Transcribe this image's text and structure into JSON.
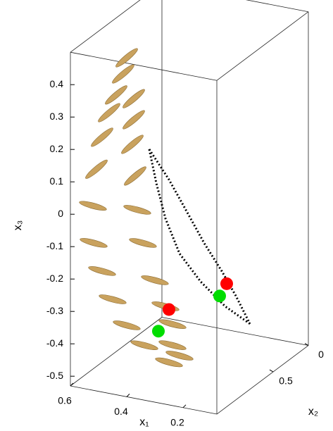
{
  "chart_data": {
    "type": "scatter3d",
    "xlabel": "x₁",
    "ylabel": "x₂",
    "zlabel": "x₃",
    "xlim": [
      0.08,
      0.6
    ],
    "ylim": [
      0,
      1.3
    ],
    "zlim": [
      -0.53,
      0.5
    ],
    "xticks": [
      0.6,
      0.4,
      0.2
    ],
    "yticks": [
      0,
      0.5
    ],
    "zticks": [
      0.4,
      0.3,
      0.2,
      0.1,
      0,
      -0.1,
      -0.2,
      -0.3,
      -0.4,
      -0.5
    ],
    "box": true,
    "series": [
      {
        "color": "#c9a25e",
        "marker": "ellipse",
        "x": [
          0.475,
          0.4875,
          0.5125,
          0.5375,
          0.5625,
          0.5825,
          0.595,
          0.5925,
          0.5625,
          0.525,
          0.475,
          0.4125,
          0.45,
          0.45,
          0.455,
          0.445,
          0.4375,
          0.4175,
          0.375,
          0.3375,
          0.3125,
          0.3125,
          0.325,
          0.2875
        ],
        "y": [
          1,
          1,
          1,
          1,
          1,
          1,
          1,
          1,
          1,
          1,
          1,
          1,
          1,
          1,
          1,
          1,
          1,
          1,
          1,
          1,
          1,
          1,
          1,
          1
        ],
        "z": [
          0.455,
          0.403,
          0.334,
          0.275,
          0.195,
          0.093,
          -0.022,
          -0.136,
          -0.218,
          -0.299,
          -0.371,
          -0.422,
          0.333,
          0.268,
          0.191,
          0.095,
          -0.008,
          -0.107,
          -0.215,
          -0.289,
          -0.34,
          -0.405,
          -0.46,
          -0.433
        ]
      },
      {
        "color": "#000000",
        "marker": "dotted-line",
        "x": [
          0.495,
          0.425,
          0.3625,
          0.3,
          0.2375,
          0.1875,
          0.1375
        ],
        "y": [
          0.6,
          0.6,
          0.6,
          0.6,
          0.6,
          0.6,
          0.6
        ],
        "z": [
          0.104,
          0.022,
          -0.065,
          -0.153,
          -0.229,
          -0.297,
          -0.375
        ]
      },
      {
        "color": "#000000",
        "marker": "dotted-line",
        "x": [
          0.495,
          0.47,
          0.4375,
          0.3875,
          0.3125,
          0.225,
          0.1375
        ],
        "y": [
          0.6,
          0.6,
          0.6,
          0.6,
          0.6,
          0.6,
          0.6
        ],
        "z": [
          0.104,
          0.004,
          -0.1,
          -0.2,
          -0.274,
          -0.336,
          -0.375
        ]
      },
      {
        "color": "#ff0000",
        "marker": "circle",
        "x": [
          0.22,
          0.325
        ],
        "y": [
          0.6,
          1
        ],
        "z": [
          -0.265,
          -0.297
        ]
      },
      {
        "color": "#00dd00",
        "marker": "circle",
        "x": [
          0.245,
          0.3625
        ],
        "y": [
          0.6,
          1
        ],
        "z": [
          -0.307,
          -0.37
        ]
      }
    ]
  }
}
